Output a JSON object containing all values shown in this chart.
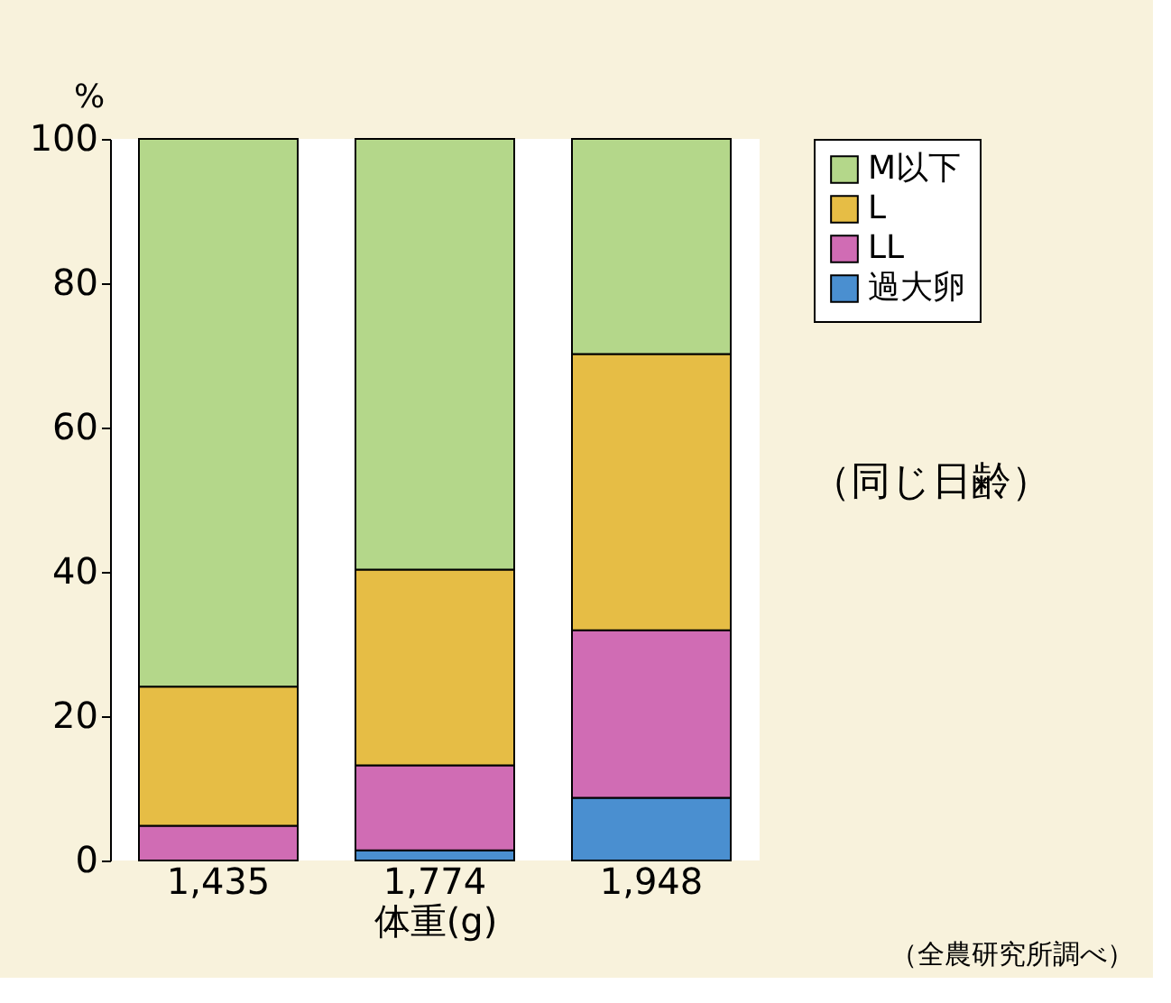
{
  "chart_data": {
    "type": "bar",
    "stacked": true,
    "xlabel": "体重(g)",
    "ylabel": "%",
    "categories": [
      "1,435",
      "1,774",
      "1,948"
    ],
    "series": [
      {
        "name": "過大卵",
        "color": "#4a8fd0",
        "values": [
          0,
          1.4,
          8.7
        ]
      },
      {
        "name": "LL",
        "color": "#d06cb4",
        "values": [
          4.8,
          11.8,
          23.2
        ]
      },
      {
        "name": "L",
        "color": "#e6bd45",
        "values": [
          19.3,
          27.1,
          38.3
        ]
      },
      {
        "name": "M以下",
        "color": "#b4d78a",
        "values": [
          75.9,
          59.7,
          29.8
        ]
      }
    ],
    "ylim": [
      0,
      100
    ],
    "yticks": [
      0,
      20,
      40,
      60,
      80,
      100
    ],
    "grid": false,
    "legend": "top right",
    "annotations": [
      "（同じ日齢）",
      "（全農研究所調べ）"
    ]
  }
}
